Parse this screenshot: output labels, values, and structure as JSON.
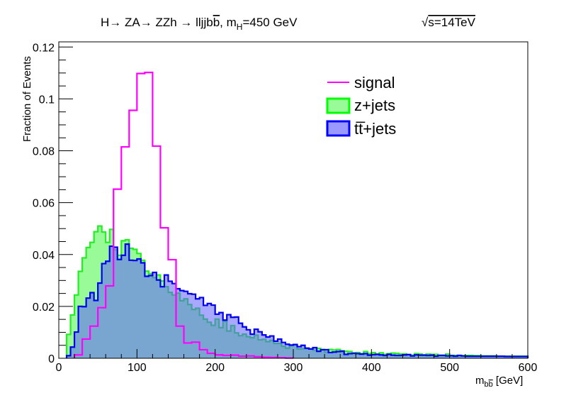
{
  "chart_data": {
    "type": "histogram",
    "title": {
      "main": "H→ ZA→ ZZh → lljjb",
      "b_bar": "b",
      "mid": ", m",
      "sub": "H",
      "tail": "=450 GeV"
    },
    "energy": {
      "sqrt": "√",
      "text": "s=14TeV"
    },
    "xlabel": {
      "m": "m",
      "sub": "b",
      "subbar": "b",
      "unit": " [GeV]"
    },
    "ylabel": "Fraction of Events",
    "xlim": [
      0,
      600
    ],
    "ylim": [
      0,
      0.122
    ],
    "xticks": [
      "0",
      "100",
      "200",
      "300",
      "400",
      "500",
      "600"
    ],
    "yticks": [
      "0",
      "0.02",
      "0.04",
      "0.06",
      "0.08",
      "0.1",
      "0.12"
    ],
    "bin_width": 10,
    "legend": [
      {
        "label": "signal",
        "style": "line",
        "color": "#ff00ff"
      },
      {
        "label": "z+jets",
        "style": "box",
        "color": "#00ff00",
        "fill": "#98fb98"
      },
      {
        "label": "tt̅+jets",
        "style": "box",
        "color": "#0000ff",
        "fill": "#9999ff"
      }
    ],
    "series": [
      {
        "name": "z+jets",
        "line_color": "#22ee22",
        "fill_color": "#98fb98",
        "fill_opacity": 1,
        "x_start": 10,
        "bin": 5,
        "values": [
          0.0092,
          0.0167,
          0.0244,
          0.0335,
          0.0387,
          0.0427,
          0.0447,
          0.0488,
          0.051,
          0.0487,
          0.0447,
          0.0497,
          0.0418,
          0.0397,
          0.0453,
          0.0457,
          0.0424,
          0.042,
          0.0404,
          0.0378,
          0.0336,
          0.0326,
          0.0311,
          0.0321,
          0.0298,
          0.0276,
          0.0254,
          0.0244,
          0.0251,
          0.0222,
          0.0229,
          0.0207,
          0.0188,
          0.0193,
          0.0166,
          0.0151,
          0.0139,
          0.0127,
          0.0151,
          0.0118,
          0.0143,
          0.0105,
          0.0126,
          0.0098,
          0.0087,
          0.0093,
          0.0083,
          0.0079,
          0.0089,
          0.0071,
          0.0073,
          0.0064,
          0.0069,
          0.0057,
          0.0057,
          0.0046,
          0.0039,
          0.0049,
          0.0052,
          0.0036,
          0.0037,
          0.0037,
          0.0036,
          0.0031,
          0.0038,
          0.0034,
          0.0024,
          0.0034,
          0.0032,
          0.0034,
          0.0029,
          0.0027,
          0.0026,
          0.0021,
          0.0022,
          0.0018,
          0.0026,
          0.0018,
          0.0022,
          0.0016,
          0.0021,
          0.0015,
          0.0018,
          0.002,
          0.0019,
          0.0016,
          0.0017,
          0.0014,
          0.0012,
          0.0018,
          0.0016,
          0.0013,
          0.0016,
          0.0015,
          0.0015,
          0.0012,
          0.0012,
          0.0016,
          0.0011,
          0.0011,
          0.001,
          0.001,
          0.0011,
          0.0011,
          0.001,
          0.001,
          0.0009,
          0.0009,
          0.0009,
          0.0009,
          0.0008,
          0.0008,
          0.0008,
          0.0008,
          0.0008,
          0.0008,
          0.0008,
          0.0008
        ]
      },
      {
        "name": "tt+jets",
        "line_color": "#0000ee",
        "fill_color": "#6060ff",
        "fill_opacity": 0.55,
        "x_start": 10,
        "bin": 5,
        "values": [
          0.001,
          0.0043,
          0.0101,
          0.02,
          0.0199,
          0.0232,
          0.0253,
          0.0223,
          0.029,
          0.0365,
          0.0374,
          0.0432,
          0.0428,
          0.0381,
          0.0397,
          0.044,
          0.0378,
          0.0377,
          0.0383,
          0.0368,
          0.0316,
          0.0319,
          0.0331,
          0.0302,
          0.0276,
          0.0321,
          0.0297,
          0.0288,
          0.0268,
          0.0261,
          0.0258,
          0.0249,
          0.0247,
          0.0229,
          0.0234,
          0.0204,
          0.0211,
          0.0205,
          0.017,
          0.0176,
          0.0147,
          0.0168,
          0.0158,
          0.0159,
          0.0135,
          0.0121,
          0.011,
          0.0093,
          0.0112,
          0.0102,
          0.009,
          0.0082,
          0.0086,
          0.0066,
          0.0074,
          0.0061,
          0.0054,
          0.0051,
          0.0053,
          0.0045,
          0.005,
          0.0039,
          0.0036,
          0.0041,
          0.0027,
          0.0033,
          0.0033,
          0.0022,
          0.0024,
          0.0026,
          0.0027,
          0.0015,
          0.0018,
          0.0019,
          0.0018,
          0.0016,
          0.0018,
          0.0012,
          0.0014,
          0.0015,
          0.0013,
          0.0011,
          0.0015,
          0.0012,
          0.0011,
          0.0011,
          0.0013,
          0.0014,
          0.0009,
          0.0013,
          0.0012,
          0.0012,
          0.0011,
          0.0012,
          0.0008,
          0.0011,
          0.0011,
          0.0009,
          0.001,
          0.0008,
          0.0011,
          0.0009,
          0.0008,
          0.0008,
          0.0008,
          0.0008,
          0.0008,
          0.0008,
          0.0008,
          0.0008,
          0.0008,
          0.0008,
          0.0007,
          0.0007,
          0.0007,
          0.0007,
          0.0007,
          0.0007
        ]
      },
      {
        "name": "signal",
        "line_color": "#ff00ff",
        "fill_color": "none",
        "fill_opacity": 0,
        "x_start": 20,
        "bin": 10,
        "values": [
          0.0013,
          0.0074,
          0.0124,
          0.0195,
          0.0279,
          0.0652,
          0.0815,
          0.0956,
          0.1098,
          0.1102,
          0.0818,
          0.0503,
          0.038,
          0.0124,
          0.0059,
          0.0062,
          0.0033,
          0.0019,
          0.0013,
          0.0011,
          0.0012,
          0.0008,
          0.0009,
          0.0006,
          0.0004,
          0.0003,
          0.0002,
          0.0001
        ]
      }
    ]
  }
}
